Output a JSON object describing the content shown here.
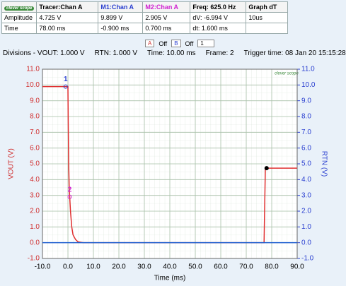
{
  "table": {
    "header": [
      "clever scope",
      "Tracer:Chan A",
      "M1:Chan A",
      "M2:Chan A",
      "Freq: 625.0 Hz",
      "Graph dT"
    ],
    "rows": [
      [
        "Amplitude",
        "4.725 V",
        "9.899 V",
        "2.905 V",
        "dV: -6.994 V",
        "10us"
      ],
      [
        "Time",
        "78.00 ms",
        "-0.900 ms",
        "0.700 ms",
        "dt: 1.600 ms"
      ]
    ]
  },
  "toolbar": {
    "channel_a": "A",
    "a_state": "Off",
    "channel_b": "B",
    "b_state": "Off",
    "frame": "1"
  },
  "status": [
    "Divisions - VOUT: 1.000 V",
    "RTN: 1.000 V",
    "Time: 10.00 ms",
    "Frame: 2",
    "Trigger time: 08 Jan 20 15:15:28"
  ],
  "chart_data": {
    "type": "line",
    "logo": "clever scope",
    "xlabel": "Time (ms)",
    "ylabel": "VOUT (V)",
    "y2label": "RTN (V)",
    "xlim": [
      -10,
      90
    ],
    "xticks": [
      {
        "value": -10,
        "label": "-10.0"
      },
      {
        "value": 0,
        "label": "0.0"
      },
      {
        "value": 10,
        "label": "10.0"
      },
      {
        "value": 20,
        "label": "20.0"
      },
      {
        "value": 30,
        "label": "30.0"
      },
      {
        "value": 40,
        "label": "40.0"
      },
      {
        "value": 50,
        "label": "50.0"
      },
      {
        "value": 60,
        "label": "60.0"
      },
      {
        "value": 70,
        "label": "70.0"
      },
      {
        "value": 80,
        "label": "80.0"
      },
      {
        "value": 90,
        "label": "90.0"
      }
    ],
    "ylim": [
      -1,
      11
    ],
    "yticks": [
      {
        "value": -1,
        "label": "-1.0"
      },
      {
        "value": 0,
        "label": "0.0"
      },
      {
        "value": 1,
        "label": "1.0"
      },
      {
        "value": 2,
        "label": "2.0"
      },
      {
        "value": 3,
        "label": "3.0"
      },
      {
        "value": 4,
        "label": "4.0"
      },
      {
        "value": 5,
        "label": "5.0"
      },
      {
        "value": 6,
        "label": "6.0"
      },
      {
        "value": 7,
        "label": "7.0"
      },
      {
        "value": 8,
        "label": "8.0"
      },
      {
        "value": 9,
        "label": "9.0"
      },
      {
        "value": 10,
        "label": "10.0"
      },
      {
        "value": 11,
        "label": "11.0"
      }
    ],
    "y2lim": [
      -1,
      11
    ],
    "y2ticks": [
      {
        "value": -1,
        "label": "-1.0"
      },
      {
        "value": 0,
        "label": "0.0"
      },
      {
        "value": 1,
        "label": "1.0"
      },
      {
        "value": 2,
        "label": "2.0"
      },
      {
        "value": 3,
        "label": "3.0"
      },
      {
        "value": 4,
        "label": "4.0"
      },
      {
        "value": 5,
        "label": "5.0"
      },
      {
        "value": 6,
        "label": "6.0"
      },
      {
        "value": 7,
        "label": "7.0"
      },
      {
        "value": 8,
        "label": "8.0"
      },
      {
        "value": 9,
        "label": "9.0"
      },
      {
        "value": 10,
        "label": "10.0"
      },
      {
        "value": 11,
        "label": "11.0"
      }
    ],
    "grid": true,
    "series": [
      {
        "color": "#e03030",
        "x": [
          -10,
          -0.9,
          0,
          0.1,
          0.3,
          0.5,
          0.7,
          1,
          1.5,
          2,
          3,
          4,
          6,
          77,
          77.5,
          78,
          90
        ],
        "values": [
          9.9,
          9.9,
          9.9,
          8.0,
          5.0,
          3.5,
          2.9,
          2.0,
          1.0,
          0.5,
          0.2,
          0.05,
          0,
          0,
          4.7,
          4.725,
          4.725
        ]
      },
      {
        "color": "#1f5fd0",
        "axis": "y2",
        "x": [
          -10,
          90
        ],
        "values": [
          0,
          0
        ]
      }
    ],
    "markers": [
      {
        "label": "1",
        "color": "#2a3fd0",
        "x": -0.9,
        "y": 9.899
      },
      {
        "label": "2",
        "color": "#d020d0",
        "x": 0.7,
        "y": 2.905
      },
      {
        "color": "#000000",
        "x": 78,
        "y": 4.725
      }
    ]
  }
}
